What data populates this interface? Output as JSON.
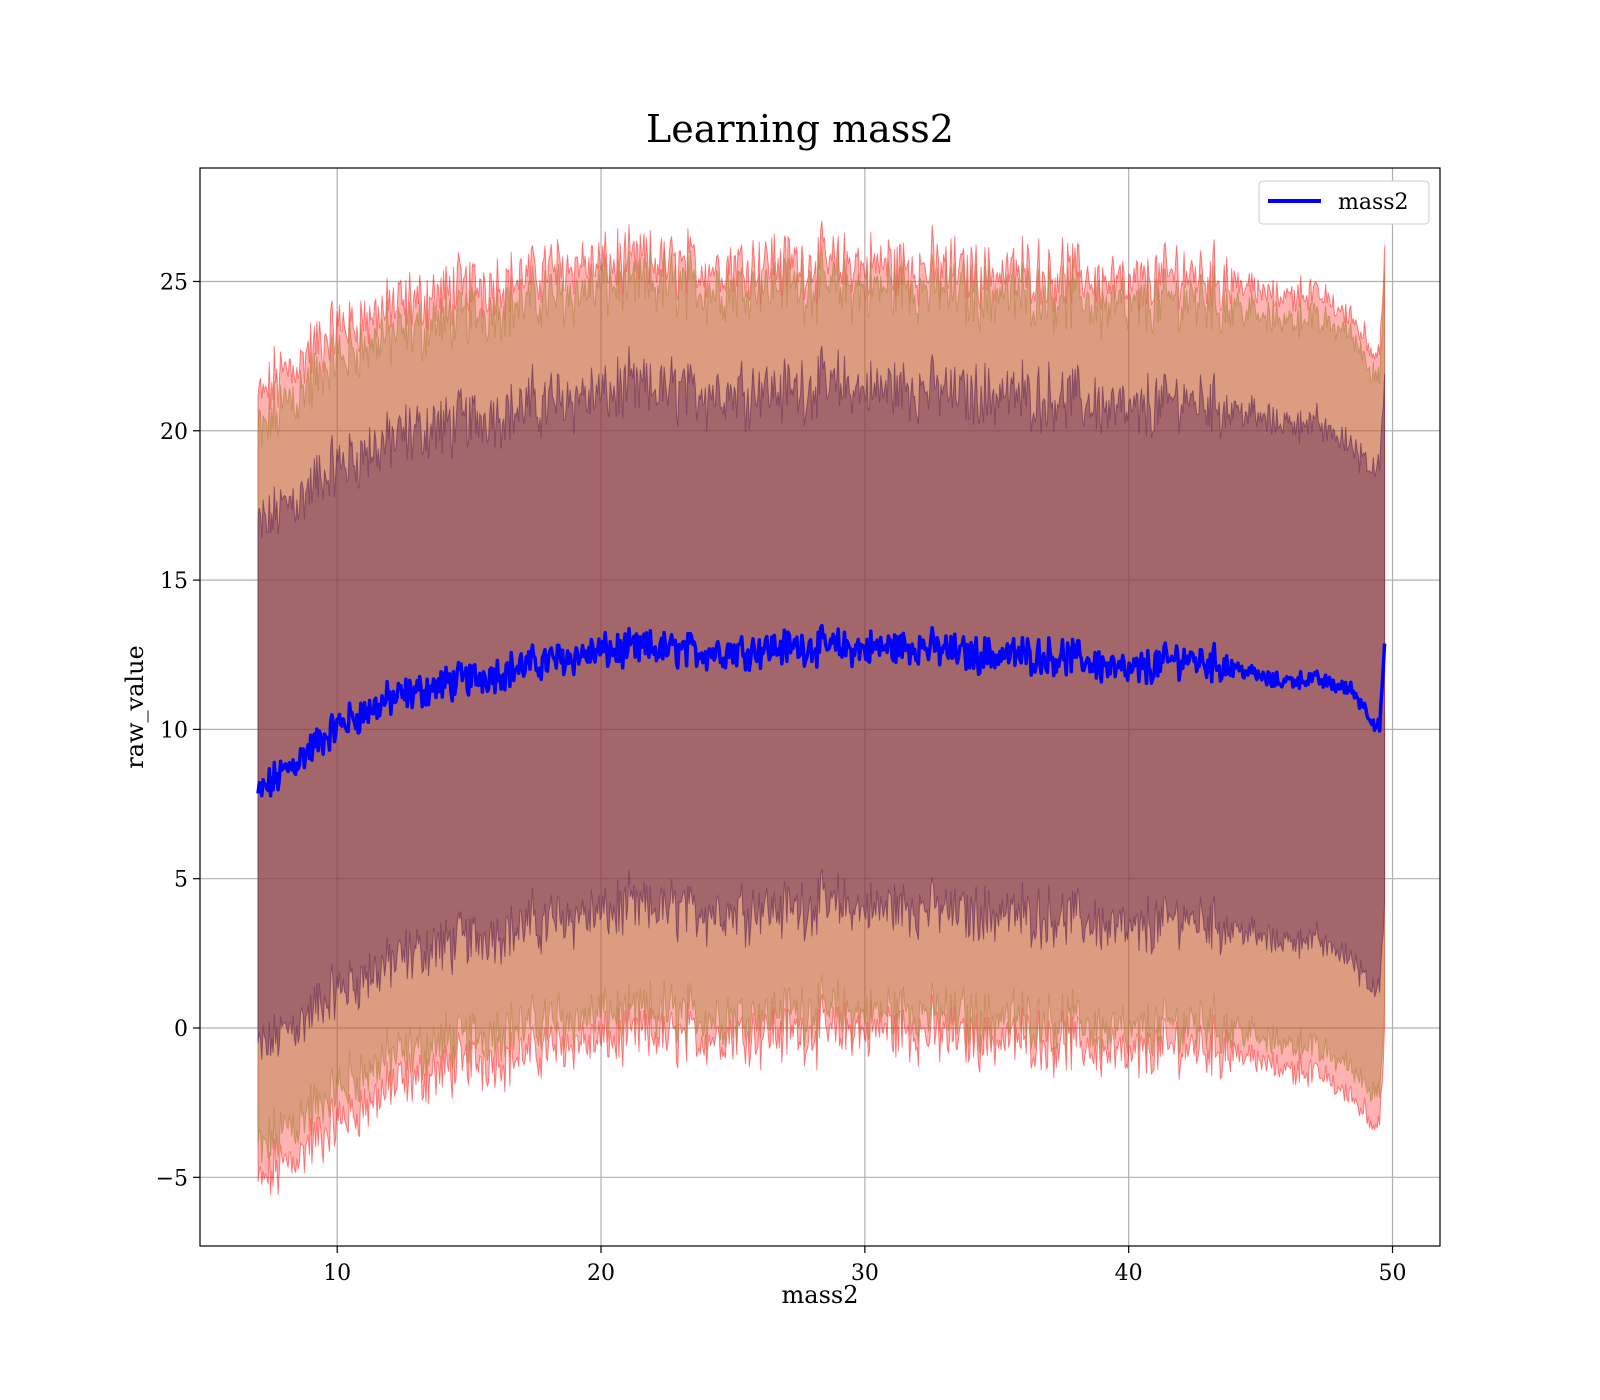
{
  "chart_data": {
    "type": "line",
    "title": "Learning mass2",
    "xlabel": "mass2",
    "ylabel": "raw_value",
    "xlim": [
      4.8,
      51.8
    ],
    "ylim": [
      -7.3,
      28.8
    ],
    "xticks": [
      10,
      20,
      30,
      40,
      50
    ],
    "xtick_labels": [
      "10",
      "20",
      "30",
      "40",
      "50"
    ],
    "yticks": [
      -5,
      0,
      5,
      10,
      15,
      20,
      25
    ],
    "ytick_labels": [
      "−5",
      "0",
      "5",
      "10",
      "15",
      "20",
      "25"
    ],
    "grid": true,
    "legend_position": "top-right",
    "x_range": [
      7.0,
      49.7
    ],
    "series": [
      {
        "name": "mass2",
        "role": "mean",
        "color": "#0000ff",
        "x": [
          7.0,
          8,
          10,
          12,
          14,
          16,
          18,
          20,
          22,
          24,
          26,
          28,
          30,
          32,
          34,
          36,
          38,
          40,
          42,
          44,
          45.5,
          47,
          48.5,
          49.5,
          49.7
        ],
        "y": [
          7.8,
          8.6,
          10.1,
          11.0,
          11.5,
          11.9,
          12.3,
          12.6,
          12.7,
          12.6,
          12.7,
          12.8,
          12.7,
          12.8,
          12.5,
          12.5,
          12.4,
          11.9,
          12.4,
          12.1,
          11.6,
          11.7,
          11.3,
          10.0,
          12.6
        ]
      }
    ],
    "bands": [
      {
        "label": "",
        "color": "#ff0000",
        "opacity": 0.3,
        "x": [
          7.0,
          8,
          10,
          12,
          14,
          16,
          18,
          20,
          22,
          24,
          26,
          28,
          30,
          32,
          34,
          36,
          38,
          40,
          42,
          44,
          45.5,
          47,
          48.5,
          49.5,
          49.7
        ],
        "upper": [
          21.0,
          21.9,
          23.4,
          24.1,
          24.6,
          25.0,
          25.4,
          25.6,
          25.6,
          25.5,
          25.6,
          25.7,
          25.5,
          25.5,
          25.3,
          25.3,
          25.2,
          24.8,
          25.3,
          25.0,
          24.5,
          24.6,
          23.8,
          22.5,
          25.5
        ],
        "lower": [
          -5.3,
          -4.6,
          -3.2,
          -2.0,
          -1.4,
          -1.0,
          -0.7,
          -0.4,
          -0.3,
          -0.3,
          -0.2,
          -0.1,
          -0.1,
          -0.1,
          -0.4,
          -0.4,
          -0.6,
          -1.0,
          -0.6,
          -0.8,
          -1.3,
          -1.5,
          -2.3,
          -3.3,
          -0.5
        ]
      },
      {
        "label": "",
        "color": "#b08040",
        "opacity": 0.45,
        "x": [
          7.0,
          8,
          10,
          12,
          14,
          16,
          18,
          20,
          22,
          24,
          26,
          28,
          30,
          32,
          34,
          36,
          38,
          40,
          42,
          44,
          45.5,
          47,
          48.5,
          49.5,
          49.7
        ],
        "upper": [
          19.8,
          20.8,
          22.4,
          23.2,
          23.7,
          24.1,
          24.5,
          24.8,
          24.9,
          24.8,
          24.9,
          24.9,
          24.8,
          24.8,
          24.6,
          24.6,
          24.5,
          24.0,
          24.5,
          24.2,
          23.7,
          23.8,
          23.2,
          21.7,
          24.8
        ],
        "lower": [
          -4.2,
          -3.5,
          -2.1,
          -1.0,
          -0.5,
          -0.1,
          0.2,
          0.4,
          0.5,
          0.4,
          0.5,
          0.6,
          0.5,
          0.6,
          0.3,
          0.3,
          0.2,
          -0.3,
          0.2,
          0.0,
          -0.5,
          -0.6,
          -1.4,
          -2.2,
          0.4
        ]
      },
      {
        "label": "",
        "color": "#6a2f57",
        "opacity": 0.5,
        "x": [
          7.0,
          8,
          10,
          12,
          14,
          16,
          18,
          20,
          22,
          24,
          26,
          28,
          30,
          32,
          34,
          36,
          38,
          40,
          42,
          44,
          45.5,
          47,
          48.5,
          49.5,
          49.7
        ],
        "upper": [
          16.7,
          17.4,
          18.8,
          19.7,
          20.2,
          20.6,
          21.0,
          21.3,
          21.4,
          21.3,
          21.4,
          21.5,
          21.4,
          21.5,
          21.2,
          21.2,
          21.1,
          20.6,
          21.1,
          20.8,
          20.3,
          20.3,
          19.5,
          18.7,
          21.4
        ],
        "lower": [
          -0.8,
          -0.2,
          1.2,
          2.2,
          2.8,
          3.2,
          3.6,
          3.9,
          4.0,
          3.9,
          4.0,
          4.1,
          4.0,
          4.1,
          3.8,
          3.8,
          3.7,
          3.2,
          3.7,
          3.4,
          2.9,
          3.0,
          2.3,
          1.2,
          3.8
        ]
      }
    ]
  }
}
